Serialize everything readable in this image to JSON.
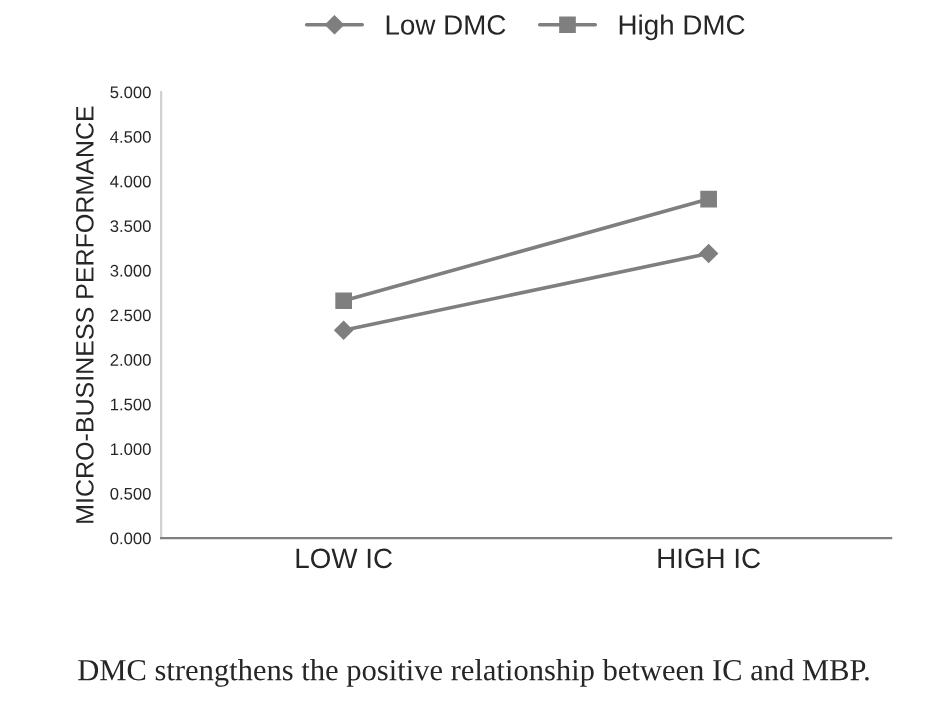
{
  "chart_data": {
    "type": "line",
    "ylabel": "MICRO-BUSINESS PERFORMANCE",
    "categories": [
      "LOW IC",
      "HIGH IC"
    ],
    "series": [
      {
        "name": "Low DMC",
        "color": "#7f7f7f",
        "marker": "diamond",
        "values": [
          2.33,
          3.19
        ]
      },
      {
        "name": "High DMC",
        "color": "#7f7f7f",
        "marker": "square",
        "values": [
          2.66,
          3.8
        ]
      }
    ],
    "ylim": [
      0,
      5
    ],
    "yticks": [
      {
        "value": 0,
        "label": "0.000"
      },
      {
        "value": 0.5,
        "label": "0.500"
      },
      {
        "value": 1,
        "label": "1.000"
      },
      {
        "value": 1.5,
        "label": "1.500"
      },
      {
        "value": 2,
        "label": "2.000"
      },
      {
        "value": 2.5,
        "label": "2.500"
      },
      {
        "value": 3,
        "label": "3.000"
      },
      {
        "value": 3.5,
        "label": "3.500"
      },
      {
        "value": 4,
        "label": "4.000"
      },
      {
        "value": 4.5,
        "label": "4.500"
      },
      {
        "value": 5,
        "label": "5.000"
      }
    ],
    "grid": false,
    "legend": "top",
    "annotations": [
      "DMC strengthens the positive relationship between IC and MBP."
    ]
  }
}
